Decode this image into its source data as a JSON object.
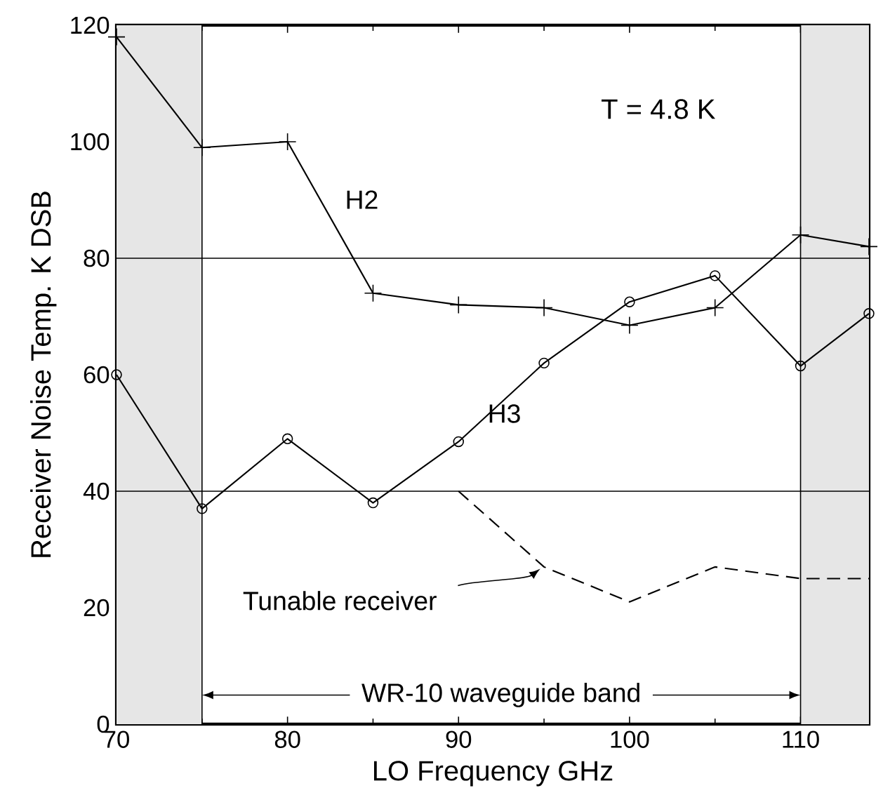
{
  "chart_data": {
    "type": "line",
    "xlabel": "LO Frequency   GHz",
    "ylabel": "Receiver Noise Temp.  K DSB",
    "xlim": [
      70,
      114
    ],
    "ylim": [
      0,
      120
    ],
    "xticks": [
      70,
      80,
      90,
      100,
      110
    ],
    "yticks": [
      0,
      20,
      40,
      60,
      80,
      100,
      120
    ],
    "x": [
      70,
      75,
      80,
      85,
      90,
      95,
      100,
      105,
      110,
      114
    ],
    "series": [
      {
        "name": "H2",
        "color": "#000000",
        "marker": "cross",
        "line_style": "solid",
        "values": [
          118,
          99,
          100,
          74,
          72,
          71.5,
          68.5,
          71.5,
          84,
          82
        ]
      },
      {
        "name": "H3",
        "color": "#000000",
        "marker": "circle",
        "line_style": "solid",
        "values": [
          60,
          37,
          49,
          38,
          48.5,
          62,
          72.5,
          77,
          61.5,
          70.5
        ]
      },
      {
        "name": "Tunable receiver",
        "color": "#000000",
        "marker": "none",
        "line_style": "dashed",
        "x": [
          90,
          95,
          100,
          105,
          110,
          114
        ],
        "values": [
          40,
          27,
          21,
          27,
          25,
          25
        ]
      }
    ],
    "ref_lines": [
      {
        "axis": "y",
        "value": 40
      },
      {
        "axis": "y",
        "value": 80
      }
    ],
    "bands": [
      {
        "axis": "x",
        "from": 70,
        "to": 75,
        "color": "#e6e6e6"
      },
      {
        "axis": "x",
        "from": 110,
        "to": 114,
        "color": "#e6e6e6"
      }
    ],
    "annotations": [
      "T = 4.8 K",
      {
        "text": "WR-10 waveguide band",
        "x": 110,
        "y": 5
      }
    ]
  }
}
